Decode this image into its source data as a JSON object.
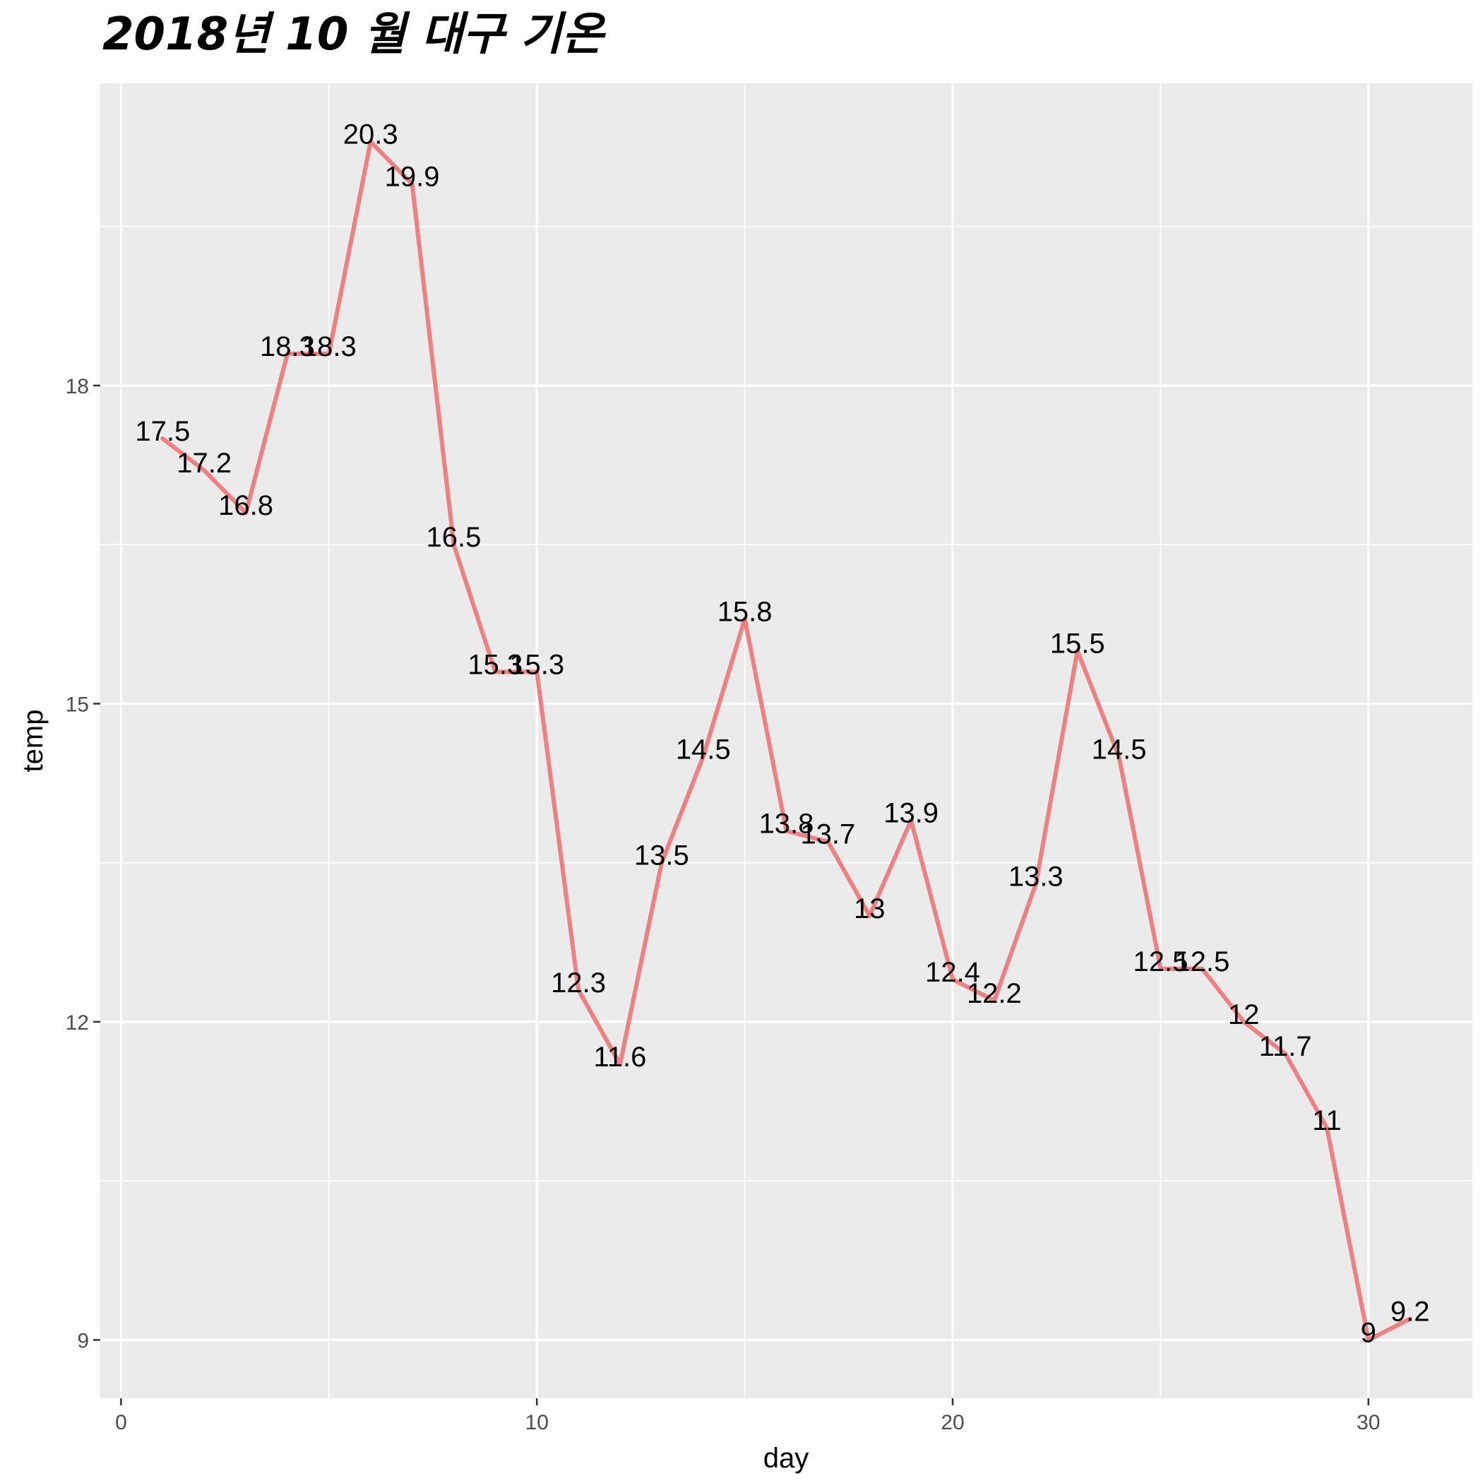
{
  "chart_data": {
    "type": "line",
    "title": "2018년 10 월 대구 기온",
    "xlabel": "day",
    "ylabel": "temp",
    "x": [
      1,
      2,
      3,
      4,
      5,
      6,
      7,
      8,
      9,
      10,
      11,
      12,
      13,
      14,
      15,
      16,
      17,
      18,
      19,
      20,
      21,
      22,
      23,
      24,
      25,
      26,
      27,
      28,
      29,
      30,
      31
    ],
    "series": [
      {
        "values": [
          17.5,
          17.2,
          16.8,
          18.3,
          18.3,
          20.3,
          19.9,
          16.5,
          15.3,
          15.3,
          12.3,
          11.6,
          13.5,
          14.5,
          15.8,
          13.8,
          13.7,
          13,
          13.9,
          12.4,
          12.2,
          13.3,
          15.5,
          14.5,
          12.5,
          12.5,
          12,
          11.7,
          11,
          9,
          9.2
        ],
        "labels": [
          "17.5",
          "17.2",
          "16.8",
          "18.3",
          "18.3",
          "20.3",
          "19.9",
          "16.5",
          "15.3",
          "15.3",
          "12.3",
          "11.6",
          "13.5",
          "14.5",
          "15.8",
          "13.8",
          "13.7",
          "13",
          "13.9",
          "12.4",
          "12.2",
          "13.3",
          "15.5",
          "14.5",
          "12.5",
          "12.5",
          "12",
          "11.7",
          "11",
          "9",
          "9.2"
        ]
      }
    ],
    "xlim": [
      -0.5,
      32.5
    ],
    "ylim": [
      8.45,
      20.85
    ],
    "x_ticks": [
      0,
      10,
      20,
      30
    ],
    "x_tick_labels": [
      "0",
      "10",
      "20",
      "30"
    ],
    "x_minor_ticks": [
      5,
      15,
      25
    ],
    "y_ticks": [
      9,
      12,
      15,
      18
    ],
    "y_tick_labels": [
      "9",
      "12",
      "15",
      "18"
    ],
    "y_minor_ticks": [
      10.5,
      13.5,
      16.5,
      19.5
    ],
    "grid": true,
    "legend": "none",
    "colors": {
      "line": "#F08080",
      "panel": "#EBEBEB",
      "grid": "#FFFFFF",
      "text": "#000000",
      "tick_text": "#4D4D4D"
    }
  }
}
